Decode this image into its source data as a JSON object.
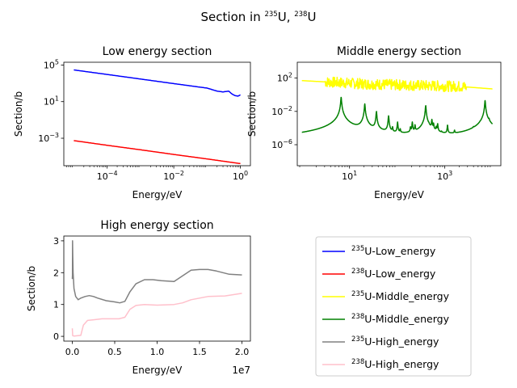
{
  "figure": {
    "title_parts": [
      {
        "t": "Section in ",
        "sup": false
      },
      {
        "t": "235",
        "sup": true
      },
      {
        "t": "U, ",
        "sup": false
      },
      {
        "t": "238",
        "sup": true
      },
      {
        "t": "U",
        "sup": false
      }
    ]
  },
  "chart_data": [
    {
      "type": "line",
      "title": "Low energy section",
      "xlabel": "Energy/eV",
      "ylabel": "Section/b",
      "xscale": "log",
      "yscale": "log",
      "xlim": [
        5e-06,
        2
      ],
      "ylim": [
        1e-06,
        200000.0
      ],
      "xticks": [
        {
          "v": 0.0001,
          "label": "10^-4"
        },
        {
          "v": 0.01,
          "label": "10^-2"
        },
        {
          "v": 1,
          "label": "10^0"
        }
      ],
      "yticks": [
        {
          "v": 0.001,
          "label": "10^-3"
        },
        {
          "v": 10,
          "label": "10^1"
        },
        {
          "v": 100000.0,
          "label": "10^5"
        }
      ],
      "series": [
        {
          "name": "U235-Low_energy",
          "color": "#0000ff",
          "points": [
            [
              1e-05,
              29000
            ],
            [
              0.0001,
              9300
            ],
            [
              0.001,
              2950
            ],
            [
              0.01,
              930
            ],
            [
              0.1,
              300
            ],
            [
              0.2,
              140
            ],
            [
              0.3,
              115
            ],
            [
              0.45,
              140
            ],
            [
              0.55,
              70
            ],
            [
              0.7,
              45
            ],
            [
              0.85,
              40
            ],
            [
              1.0,
              55
            ]
          ]
        },
        {
          "name": "U238-Low_energy",
          "color": "#ff0000",
          "points": [
            [
              1e-05,
              0.00055
            ],
            [
              0.0001,
              0.00017
            ],
            [
              0.001,
              5.5e-05
            ],
            [
              0.01,
              1.7e-05
            ],
            [
              0.1,
              5.5e-06
            ],
            [
              1.0,
              1.7e-06
            ]
          ]
        }
      ]
    },
    {
      "type": "line",
      "title": "Middle energy section",
      "xlabel": "Energy/eV",
      "ylabel": "Section/b",
      "xscale": "log",
      "yscale": "log",
      "xlim": [
        0.8,
        15000
      ],
      "ylim": [
        3e-09,
        8000
      ],
      "xticks": [
        {
          "v": 10,
          "label": "10^1"
        },
        {
          "v": 1000,
          "label": "10^3"
        }
      ],
      "yticks": [
        {
          "v": 1e-06,
          "label": "10^-6"
        },
        {
          "v": 0.01,
          "label": "10^-2"
        },
        {
          "v": 100,
          "label": "10^2"
        }
      ],
      "series": [
        {
          "name": "U235-Middle_energy",
          "color": "#ffff00",
          "kind": "noisy",
          "points": [
            [
              1,
              50
            ],
            [
              2,
              40
            ],
            [
              5,
              30
            ],
            [
              20,
              20
            ],
            [
              100,
              15
            ],
            [
              500,
              12
            ],
            [
              2000,
              10
            ],
            [
              10000,
              5
            ]
          ],
          "noise_until": 2800
        },
        {
          "name": "U238-Middle_energy",
          "color": "#008000",
          "kind": "resonant",
          "points": [
            [
              1,
              2e-06
            ],
            [
              3,
              1.5e-06
            ],
            [
              5,
              2e-06
            ],
            [
              20,
              1e-06
            ],
            [
              100,
              7e-07
            ],
            [
              300,
              5e-07
            ],
            [
              1000,
              3e-07
            ],
            [
              3000,
              2e-07
            ],
            [
              10000,
              2e-07
            ]
          ],
          "peaks": [
            [
              6.67,
              0.5
            ],
            [
              20.9,
              0.08
            ],
            [
              36.7,
              0.01
            ],
            [
              66,
              0.003
            ],
            [
              80,
              0.0001
            ],
            [
              102,
              0.0005
            ],
            [
              116,
              5e-05
            ],
            [
              190,
              0.0001
            ],
            [
              208,
              0.0005
            ],
            [
              237,
              0.0002
            ],
            [
              350,
              2e-05
            ],
            [
              397,
              0.05
            ],
            [
              463,
              0.0001
            ],
            [
              535,
              0.001
            ],
            [
              580,
              0.0003
            ],
            [
              660,
              0.0001
            ],
            [
              708,
              0.0003
            ],
            [
              850,
              1e-05
            ],
            [
              1140,
              0.0002
            ],
            [
              1600,
              3e-05
            ],
            [
              4000,
              3e-05
            ],
            [
              5500,
              5e-05
            ],
            [
              6200,
              0.0001
            ],
            [
              7000,
              0.2
            ],
            [
              8500,
              0.0005
            ]
          ]
        }
      ]
    },
    {
      "type": "line",
      "title": "High energy section",
      "xlabel": "Energy/eV",
      "ylabel": "Section/b",
      "xscale": "linear",
      "yscale": "linear",
      "xlim": [
        -1000000.0,
        21000000.0
      ],
      "ylim": [
        -0.15,
        3.15
      ],
      "xticks": [
        {
          "v": 0,
          "label": "0.0"
        },
        {
          "v": 5000000.0,
          "label": "0.5"
        },
        {
          "v": 10000000.0,
          "label": "1.0"
        },
        {
          "v": 15000000.0,
          "label": "1.5"
        },
        {
          "v": 20000000.0,
          "label": "2.0"
        }
      ],
      "yticks": [
        {
          "v": 0,
          "label": "0"
        },
        {
          "v": 1,
          "label": "1"
        },
        {
          "v": 2,
          "label": "2"
        },
        {
          "v": 3,
          "label": "3"
        }
      ],
      "offset_text": "1e7",
      "series": [
        {
          "name": "U235-High_energy",
          "color": "#808080",
          "points": [
            [
              0,
              1.8
            ],
            [
              30000,
              3.0
            ],
            [
              60000,
              2.5
            ],
            [
              100000,
              2.0
            ],
            [
              200000,
              1.5
            ],
            [
              400000,
              1.25
            ],
            [
              700000,
              1.15
            ],
            [
              1000000,
              1.2
            ],
            [
              1500000,
              1.25
            ],
            [
              2000000,
              1.28
            ],
            [
              2500000,
              1.25
            ],
            [
              3000000,
              1.2
            ],
            [
              4000000,
              1.12
            ],
            [
              5000000,
              1.08
            ],
            [
              5600000,
              1.05
            ],
            [
              6200000,
              1.1
            ],
            [
              6800000,
              1.4
            ],
            [
              7500000,
              1.65
            ],
            [
              8500000,
              1.78
            ],
            [
              9500000,
              1.78
            ],
            [
              10500000,
              1.75
            ],
            [
              12000000,
              1.72
            ],
            [
              13000000,
              1.9
            ],
            [
              14000000,
              2.08
            ],
            [
              15000000,
              2.1
            ],
            [
              16000000,
              2.1
            ],
            [
              17000000,
              2.05
            ],
            [
              18500000,
              1.95
            ],
            [
              20000,
              1.93
            ],
            [
              20000000,
              1.93
            ]
          ]
        },
        {
          "name": "U238-High_energy",
          "color": "#ffc0cb",
          "points": [
            [
              0,
              0.25
            ],
            [
              50000,
              0.02
            ],
            [
              200000,
              0.01
            ],
            [
              1000000,
              0.03
            ],
            [
              1300000,
              0.35
            ],
            [
              1800000,
              0.5
            ],
            [
              2500000,
              0.52
            ],
            [
              3500000,
              0.55
            ],
            [
              4500000,
              0.55
            ],
            [
              5500000,
              0.55
            ],
            [
              6200000,
              0.6
            ],
            [
              6800000,
              0.85
            ],
            [
              7500000,
              0.97
            ],
            [
              8500000,
              1.0
            ],
            [
              10000000,
              0.98
            ],
            [
              12000000,
              1.0
            ],
            [
              13000000,
              1.05
            ],
            [
              14000000,
              1.15
            ],
            [
              15000000,
              1.2
            ],
            [
              16000000,
              1.25
            ],
            [
              18000000,
              1.27
            ],
            [
              20000000,
              1.35
            ]
          ]
        }
      ]
    }
  ],
  "legend": {
    "placement": "bottom-right",
    "entries": [
      {
        "iso": "235",
        "label": "U-Low_energy",
        "color": "#0000ff"
      },
      {
        "iso": "238",
        "label": "U-Low_energy",
        "color": "#ff0000"
      },
      {
        "iso": "235",
        "label": "U-Middle_energy",
        "color": "#ffff00"
      },
      {
        "iso": "238",
        "label": "U-Middle_energy",
        "color": "#008000"
      },
      {
        "iso": "235",
        "label": "U-High_energy",
        "color": "#808080"
      },
      {
        "iso": "238",
        "label": "U-High_energy",
        "color": "#ffc0cb"
      }
    ]
  }
}
